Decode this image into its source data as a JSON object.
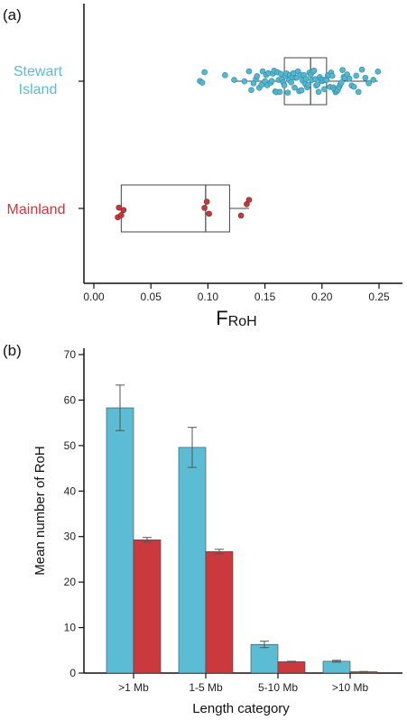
{
  "colors": {
    "stewart": "#5bbcd4",
    "mainland": "#c9393d",
    "stewart_point": "#55b7cf",
    "mainland_point": "#c0393b"
  },
  "panel_a": {
    "label": "(a)",
    "x_title_main": "F",
    "x_title_sub": "RoH",
    "groups": [
      {
        "label_line1": "Stewart",
        "label_line2": "Island",
        "color_key": "stewart"
      },
      {
        "label_line1": "Mainland",
        "label_line2": "",
        "color_key": "mainland"
      }
    ]
  },
  "panel_b": {
    "label": "(b)",
    "y_title": "Mean number of RoH",
    "x_title": "Length category"
  },
  "chart_data": [
    {
      "type": "box",
      "xlabel": "FRoH",
      "ylabel": "",
      "xlim": [
        -0.01,
        0.27
      ],
      "xticks": [
        0.0,
        0.05,
        0.1,
        0.15,
        0.2,
        0.25
      ],
      "xtick_labels": [
        "0.00",
        "0.05",
        "0.10",
        "0.15",
        "0.20",
        "0.25"
      ],
      "categories": [
        "Stewart Island",
        "Mainland"
      ],
      "boxes": [
        {
          "name": "Stewart Island",
          "whisker_low": 0.122,
          "q1": 0.167,
          "median": 0.19,
          "q3": 0.204,
          "whisker_high": 0.249
        },
        {
          "name": "Mainland",
          "whisker_low": 0.021,
          "q1": 0.024,
          "median": 0.098,
          "q3": 0.119,
          "whisker_high": 0.136
        }
      ],
      "points": {
        "Stewart Island": [
          0.093,
          0.095,
          0.097,
          0.115,
          0.123,
          0.132,
          0.136,
          0.138,
          0.14,
          0.142,
          0.143,
          0.145,
          0.147,
          0.148,
          0.15,
          0.151,
          0.152,
          0.153,
          0.155,
          0.156,
          0.157,
          0.158,
          0.159,
          0.16,
          0.161,
          0.162,
          0.163,
          0.164,
          0.165,
          0.166,
          0.167,
          0.168,
          0.169,
          0.17,
          0.171,
          0.172,
          0.173,
          0.174,
          0.175,
          0.176,
          0.177,
          0.178,
          0.179,
          0.18,
          0.181,
          0.182,
          0.183,
          0.184,
          0.185,
          0.186,
          0.187,
          0.188,
          0.189,
          0.19,
          0.191,
          0.192,
          0.193,
          0.194,
          0.195,
          0.196,
          0.197,
          0.198,
          0.199,
          0.2,
          0.201,
          0.202,
          0.203,
          0.204,
          0.205,
          0.206,
          0.207,
          0.208,
          0.209,
          0.21,
          0.211,
          0.212,
          0.213,
          0.214,
          0.215,
          0.216,
          0.217,
          0.218,
          0.219,
          0.22,
          0.222,
          0.224,
          0.226,
          0.228,
          0.23,
          0.232,
          0.235,
          0.238,
          0.241,
          0.245,
          0.249
        ],
        "Mainland": [
          0.021,
          0.022,
          0.024,
          0.026,
          0.097,
          0.099,
          0.101,
          0.129,
          0.134,
          0.136
        ]
      }
    },
    {
      "type": "bar",
      "categories": [
        ">1 Mb",
        "1-5 Mb",
        "5-10 Mb",
        ">10 Mb"
      ],
      "series": [
        {
          "color_key": "stewart",
          "values": [
            58.3,
            49.6,
            6.3,
            2.6
          ],
          "errors": [
            5.0,
            4.4,
            0.7,
            0.2
          ]
        },
        {
          "color_key": "mainland",
          "values": [
            29.3,
            26.7,
            2.5,
            0.3
          ],
          "errors": [
            0.5,
            0.5,
            0.1,
            0.05
          ]
        }
      ],
      "xlabel": "Length category",
      "ylabel": "Mean number of RoH",
      "ylim": [
        0,
        70
      ],
      "yticks": [
        0,
        10,
        20,
        30,
        40,
        50,
        60,
        70
      ]
    }
  ]
}
